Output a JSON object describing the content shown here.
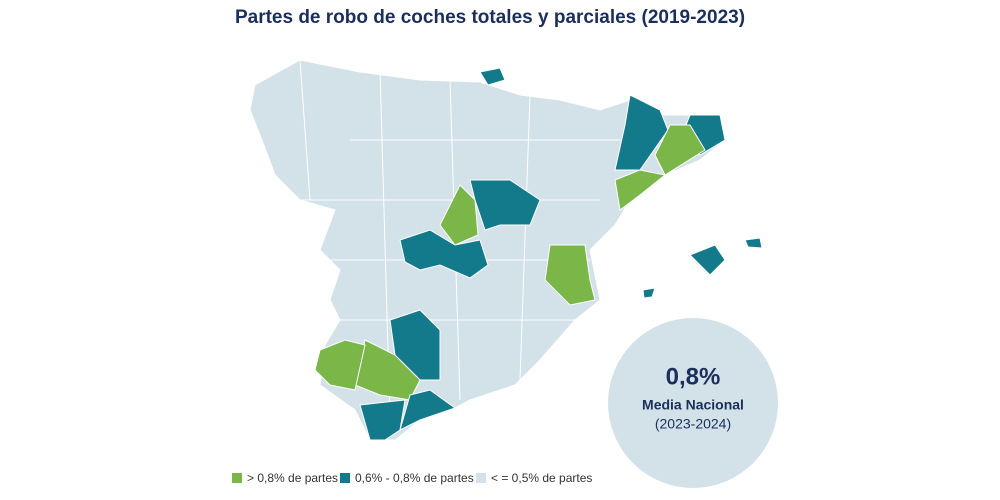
{
  "header": {
    "title": "Partes de robo de coches totales y parciales (2019-2023)"
  },
  "callout": {
    "value": "0,8%",
    "label": "Media Nacional",
    "period": "(2023-2024)"
  },
  "legend": [
    {
      "label": "> 0,8% de partes",
      "color": "#7ab648"
    },
    {
      "label": "0,6% - 0,8% de partes",
      "color": "#127a8a"
    },
    {
      "label": "< = 0,5% de partes",
      "color": "#d3e1e8"
    }
  ]
}
